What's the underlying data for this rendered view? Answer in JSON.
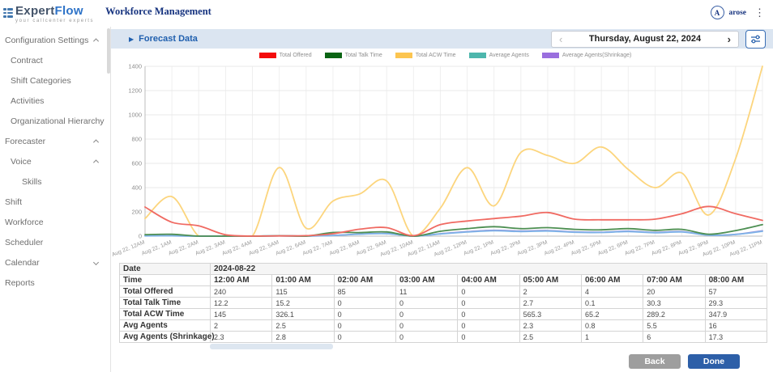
{
  "header": {
    "logo": {
      "brand_expert": "Expert",
      "brand_flow": "Flow",
      "tagline": "your callcenter experts"
    },
    "app_title": "Workforce Management",
    "user": {
      "avatar_letter": "A",
      "username": "arose"
    }
  },
  "sidebar": {
    "items": [
      {
        "label": "Configuration Settings",
        "level": 0,
        "chevron": "up"
      },
      {
        "label": "Contract",
        "level": 1
      },
      {
        "label": "Shift Categories",
        "level": 1
      },
      {
        "label": "Activities",
        "level": 1
      },
      {
        "label": "Organizational Hierarchy",
        "level": 1
      },
      {
        "label": "Forecaster",
        "level": 0,
        "chevron": "up"
      },
      {
        "label": "Voice",
        "level": 1,
        "chevron": "up"
      },
      {
        "label": "Skills",
        "level": 2
      },
      {
        "label": "Shift",
        "level": 0
      },
      {
        "label": "Workforce",
        "level": 0
      },
      {
        "label": "Scheduler",
        "level": 0
      },
      {
        "label": "Calendar",
        "level": 0,
        "chevron": "down"
      },
      {
        "label": "Reports",
        "level": 0
      }
    ]
  },
  "toolbar": {
    "title": "Forecast Data",
    "date_label": "Thursday, August 22, 2024"
  },
  "chart_data": {
    "type": "line",
    "x": [
      "Aug 22, 12AM",
      "Aug 22, 1AM",
      "Aug 22, 2AM",
      "Aug 22, 3AM",
      "Aug 22, 4AM",
      "Aug 22, 5AM",
      "Aug 22, 6AM",
      "Aug 22, 7AM",
      "Aug 22, 8AM",
      "Aug 22, 9AM",
      "Aug 22, 10AM",
      "Aug 22, 11AM",
      "Aug 22, 12PM",
      "Aug 22, 1PM",
      "Aug 22, 2PM",
      "Aug 22, 3PM",
      "Aug 22, 4PM",
      "Aug 22, 5PM",
      "Aug 22, 6PM",
      "Aug 22, 7PM",
      "Aug 22, 8PM",
      "Aug 22, 9PM",
      "Aug 22, 10PM",
      "Aug 22, 11PM"
    ],
    "ylim": [
      0,
      1400
    ],
    "yticks": [
      0,
      200,
      400,
      600,
      800,
      1000,
      1200,
      1400
    ],
    "grid": true,
    "legend_position": "top",
    "series": [
      {
        "name": "Total Offered",
        "swatch_color": "#f40b0b",
        "line_color": "#f06a62",
        "values": [
          240,
          115,
          85,
          11,
          0,
          2,
          4,
          20,
          57,
          70,
          4,
          95,
          125,
          145,
          165,
          195,
          140,
          135,
          135,
          140,
          185,
          245,
          185,
          130
        ]
      },
      {
        "name": "Total Talk Time",
        "swatch_color": "#0b6414",
        "line_color": "#4d8f52",
        "values": [
          12.2,
          15.2,
          0,
          0,
          0,
          2.7,
          0.1,
          30.3,
          29.3,
          35,
          0,
          40,
          62,
          78,
          62,
          70,
          56,
          52,
          62,
          48,
          56,
          16,
          46,
          95
        ]
      },
      {
        "name": "Total ACW Time",
        "swatch_color": "#fcc550",
        "line_color": "#fcd57d",
        "values": [
          145,
          326.1,
          0,
          0,
          0,
          565.3,
          65.2,
          289.2,
          347.9,
          455,
          0,
          230,
          565,
          250,
          690,
          665,
          600,
          735,
          550,
          400,
          520,
          175,
          640,
          1400
        ]
      },
      {
        "name": "Average Agents",
        "swatch_color": "#4db6ac",
        "line_color": "#7eb3e8",
        "values": [
          2,
          2.5,
          0,
          0,
          0,
          2.3,
          0.8,
          5.5,
          16,
          20,
          0,
          18,
          34,
          44,
          38,
          42,
          32,
          30,
          38,
          28,
          34,
          8,
          14,
          40
        ]
      },
      {
        "name": "Average Agents(Shrinkage)",
        "swatch_color": "#9a6fde",
        "line_color": "#9a8fd8",
        "values": [
          2.3,
          2.8,
          0,
          0,
          0,
          2.5,
          1,
          6,
          17.3,
          22,
          0,
          20,
          37,
          48,
          42,
          46,
          35,
          33,
          41,
          31,
          37,
          9,
          15,
          44
        ]
      }
    ]
  },
  "table": {
    "date_label": "Date",
    "date_value": "2024-08-22",
    "time_label": "Time",
    "time_columns": [
      "12:00 AM",
      "01:00 AM",
      "02:00 AM",
      "03:00 AM",
      "04:00 AM",
      "05:00 AM",
      "06:00 AM",
      "07:00 AM",
      "08:00 AM"
    ],
    "rows": [
      {
        "label": "Total Offered",
        "values": [
          "240",
          "115",
          "85",
          "11",
          "0",
          "2",
          "4",
          "20",
          "57"
        ]
      },
      {
        "label": "Total Talk Time",
        "values": [
          "12.2",
          "15.2",
          "0",
          "0",
          "0",
          "2.7",
          "0.1",
          "30.3",
          "29.3"
        ]
      },
      {
        "label": "Total ACW Time",
        "values": [
          "145",
          "326.1",
          "0",
          "0",
          "0",
          "565.3",
          "65.2",
          "289.2",
          "347.9"
        ]
      },
      {
        "label": "Avg Agents",
        "values": [
          "2",
          "2.5",
          "0",
          "0",
          "0",
          "2.3",
          "0.8",
          "5.5",
          "16"
        ]
      },
      {
        "label": "Avg Agents (Shrinkage)",
        "values": [
          "2.3",
          "2.8",
          "0",
          "0",
          "0",
          "2.5",
          "1",
          "6",
          "17.3"
        ]
      }
    ]
  },
  "footer": {
    "back_label": "Back",
    "done_label": "Done"
  }
}
